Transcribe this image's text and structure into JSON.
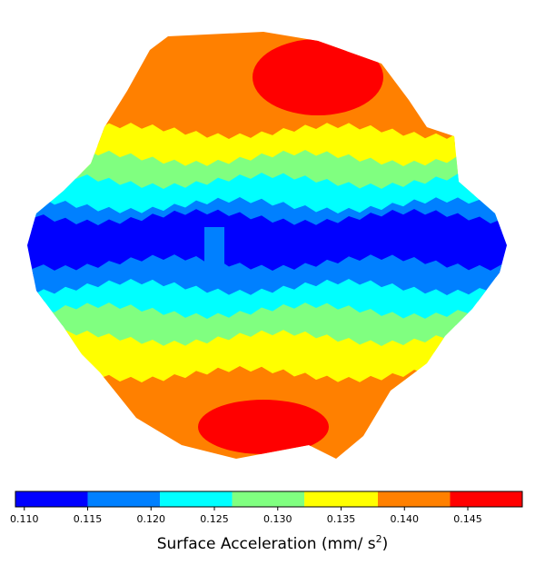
{
  "chart_data": {
    "type": "colorbar",
    "bins": [
      0.1093,
      0.115,
      0.1207,
      0.1264,
      0.1321,
      0.1379,
      0.1436,
      0.1493
    ],
    "colors": [
      "#0000ff",
      "#0080ff",
      "#00ffff",
      "#80ff80",
      "#ffff00",
      "#ff8000",
      "#ff0000"
    ],
    "xlim": [
      0.1093,
      0.1493
    ],
    "xticks": [
      {
        "value": 0.11,
        "label": "0.110"
      },
      {
        "value": 0.115,
        "label": "0.115"
      },
      {
        "value": 0.12,
        "label": "0.120"
      },
      {
        "value": 0.125,
        "label": "0.125"
      },
      {
        "value": 0.13,
        "label": "0.130"
      },
      {
        "value": 0.135,
        "label": "0.135"
      },
      {
        "value": 0.14,
        "label": "0.140"
      },
      {
        "value": 0.145,
        "label": "0.145"
      }
    ],
    "xlabel": "Surface Acceleration (mm/ s",
    "xlabel_superscript": "2",
    "xlabel_end": ")"
  }
}
